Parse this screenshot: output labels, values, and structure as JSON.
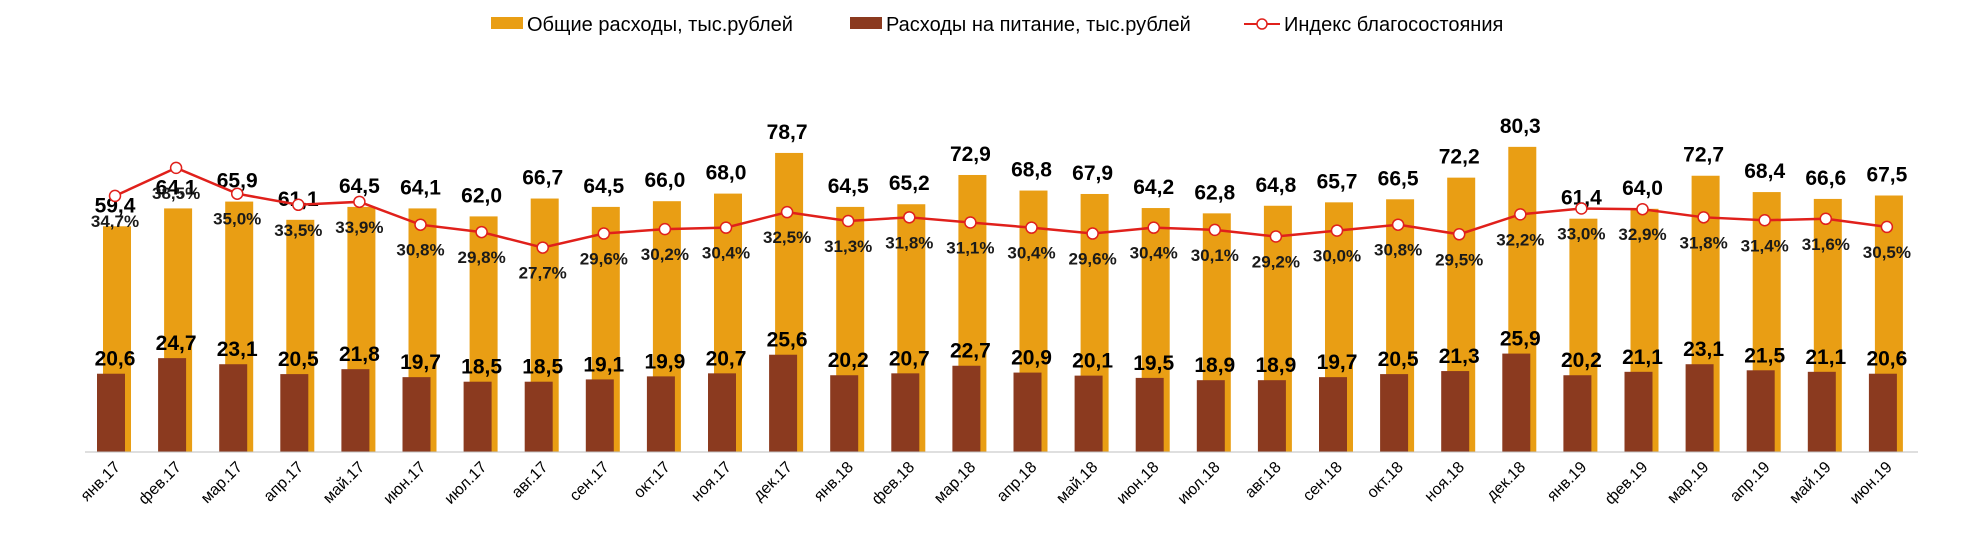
{
  "colors": {
    "total": "#E99E14",
    "food": "#8B3A1F",
    "index": "#E0201B"
  },
  "legend": {
    "total": "Общие расходы, тыс.рублей",
    "food": "Расходы на питание, тыс.рублей",
    "index": "Индекс благосостояния"
  },
  "chart_data": {
    "type": "bar",
    "title": "",
    "xlabel": "",
    "ylabel": "",
    "grid": false,
    "legend_position": "top",
    "ylim": [
      0,
      90
    ],
    "index_ylim": [
      0,
      45
    ],
    "categories": [
      "янв.17",
      "фев.17",
      "мар.17",
      "апр.17",
      "май.17",
      "июн.17",
      "июл.17",
      "авг.17",
      "сен.17",
      "окт.17",
      "ноя.17",
      "дек.17",
      "янв.18",
      "фев.18",
      "мар.18",
      "апр.18",
      "май.18",
      "июн.18",
      "июл.18",
      "авг.18",
      "сен.18",
      "окт.18",
      "ноя.18",
      "дек.18",
      "янв.19",
      "фев.19",
      "мар.19",
      "апр.19",
      "май.19",
      "июн.19"
    ],
    "series": [
      {
        "name": "Общие расходы, тыс.рублей",
        "type": "bar",
        "values": [
          59.4,
          64.1,
          65.9,
          61.1,
          64.5,
          64.1,
          62.0,
          66.7,
          64.5,
          66.0,
          68.0,
          78.7,
          64.5,
          65.2,
          72.9,
          68.8,
          67.9,
          64.2,
          62.8,
          64.8,
          65.7,
          66.5,
          72.2,
          80.3,
          61.4,
          64.0,
          72.7,
          68.4,
          66.6,
          67.5
        ],
        "labels": [
          "59,4",
          "64,1",
          "65,9",
          "61,1",
          "64,5",
          "64,1",
          "62,0",
          "66,7",
          "64,5",
          "66,0",
          "68,0",
          "78,7",
          "64,5",
          "65,2",
          "72,9",
          "68,8",
          "67,9",
          "64,2",
          "62,8",
          "64,8",
          "65,7",
          "66,5",
          "72,2",
          "80,3",
          "61,4",
          "64,0",
          "72,7",
          "68,4",
          "66,6",
          "67,5"
        ]
      },
      {
        "name": "Расходы на питание, тыс.рублей",
        "type": "bar",
        "values": [
          20.6,
          24.7,
          23.1,
          20.5,
          21.8,
          19.7,
          18.5,
          18.5,
          19.1,
          19.9,
          20.7,
          25.6,
          20.2,
          20.7,
          22.7,
          20.9,
          20.1,
          19.5,
          18.9,
          18.9,
          19.7,
          20.5,
          21.3,
          25.9,
          20.2,
          21.1,
          23.1,
          21.5,
          21.1,
          20.6
        ],
        "labels": [
          "20,6",
          "24,7",
          "23,1",
          "20,5",
          "21,8",
          "19,7",
          "18,5",
          "18,5",
          "19,1",
          "19,9",
          "20,7",
          "25,6",
          "20,2",
          "20,7",
          "22,7",
          "20,9",
          "20,1",
          "19,5",
          "18,9",
          "18,9",
          "19,7",
          "20,5",
          "21,3",
          "25,9",
          "20,2",
          "21,1",
          "23,1",
          "21,5",
          "21,1",
          "20,6"
        ]
      },
      {
        "name": "Индекс благосостояния",
        "type": "line",
        "values": [
          34.7,
          38.5,
          35.0,
          33.5,
          33.9,
          30.8,
          29.8,
          27.7,
          29.6,
          30.2,
          30.4,
          32.5,
          31.3,
          31.8,
          31.1,
          30.4,
          29.6,
          30.4,
          30.1,
          29.2,
          30.0,
          30.8,
          29.5,
          32.2,
          33.0,
          32.9,
          31.8,
          31.4,
          31.6,
          30.5
        ],
        "labels": [
          "34,7%",
          "38,5%",
          "35,0%",
          "33,5%",
          "33,9%",
          "30,8%",
          "29,8%",
          "27,7%",
          "29,6%",
          "30,2%",
          "30,4%",
          "32,5%",
          "31,3%",
          "31,8%",
          "31,1%",
          "30,4%",
          "29,6%",
          "30,4%",
          "30,1%",
          "29,2%",
          "30,0%",
          "30,8%",
          "29,5%",
          "32,2%",
          "33,0%",
          "32,9%",
          "31,8%",
          "31,4%",
          "31,6%",
          "30,5%"
        ]
      }
    ]
  }
}
